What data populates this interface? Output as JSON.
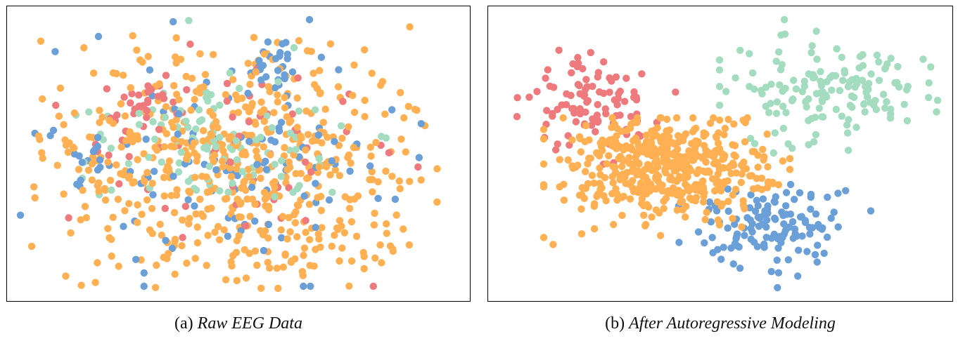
{
  "chart_data": [
    {
      "type": "scatter",
      "panel_label": "(a)",
      "title": "Raw EEG Data",
      "xlabel": "",
      "ylabel": "",
      "grid": false,
      "axes_ticks": false,
      "point_count": 900,
      "clusters": [
        {
          "color": "#FFB052",
          "share": 0.62,
          "spread": "diffuse across whole plot"
        },
        {
          "color": "#6A9FD8",
          "share": 0.16,
          "spread": "scattered, mixed"
        },
        {
          "color": "#A3DCBE",
          "share": 0.12,
          "spread": "central band, mixed"
        },
        {
          "color": "#EE7A7E",
          "share": 0.1,
          "spread": "scattered upper-left/center"
        }
      ]
    },
    {
      "type": "scatter",
      "panel_label": "(b)",
      "title": "After Autoregressive Modeling",
      "xlabel": "",
      "ylabel": "",
      "grid": false,
      "axes_ticks": false,
      "point_count": 850,
      "clusters": [
        {
          "color": "#FFB052",
          "position": "center",
          "share": 0.55
        },
        {
          "color": "#EE7A7E",
          "position": "upper-left",
          "share": 0.12
        },
        {
          "color": "#A3DCBE",
          "position": "upper-right",
          "share": 0.18
        },
        {
          "color": "#6A9FD8",
          "position": "lower-right",
          "share": 0.15
        }
      ]
    }
  ]
}
